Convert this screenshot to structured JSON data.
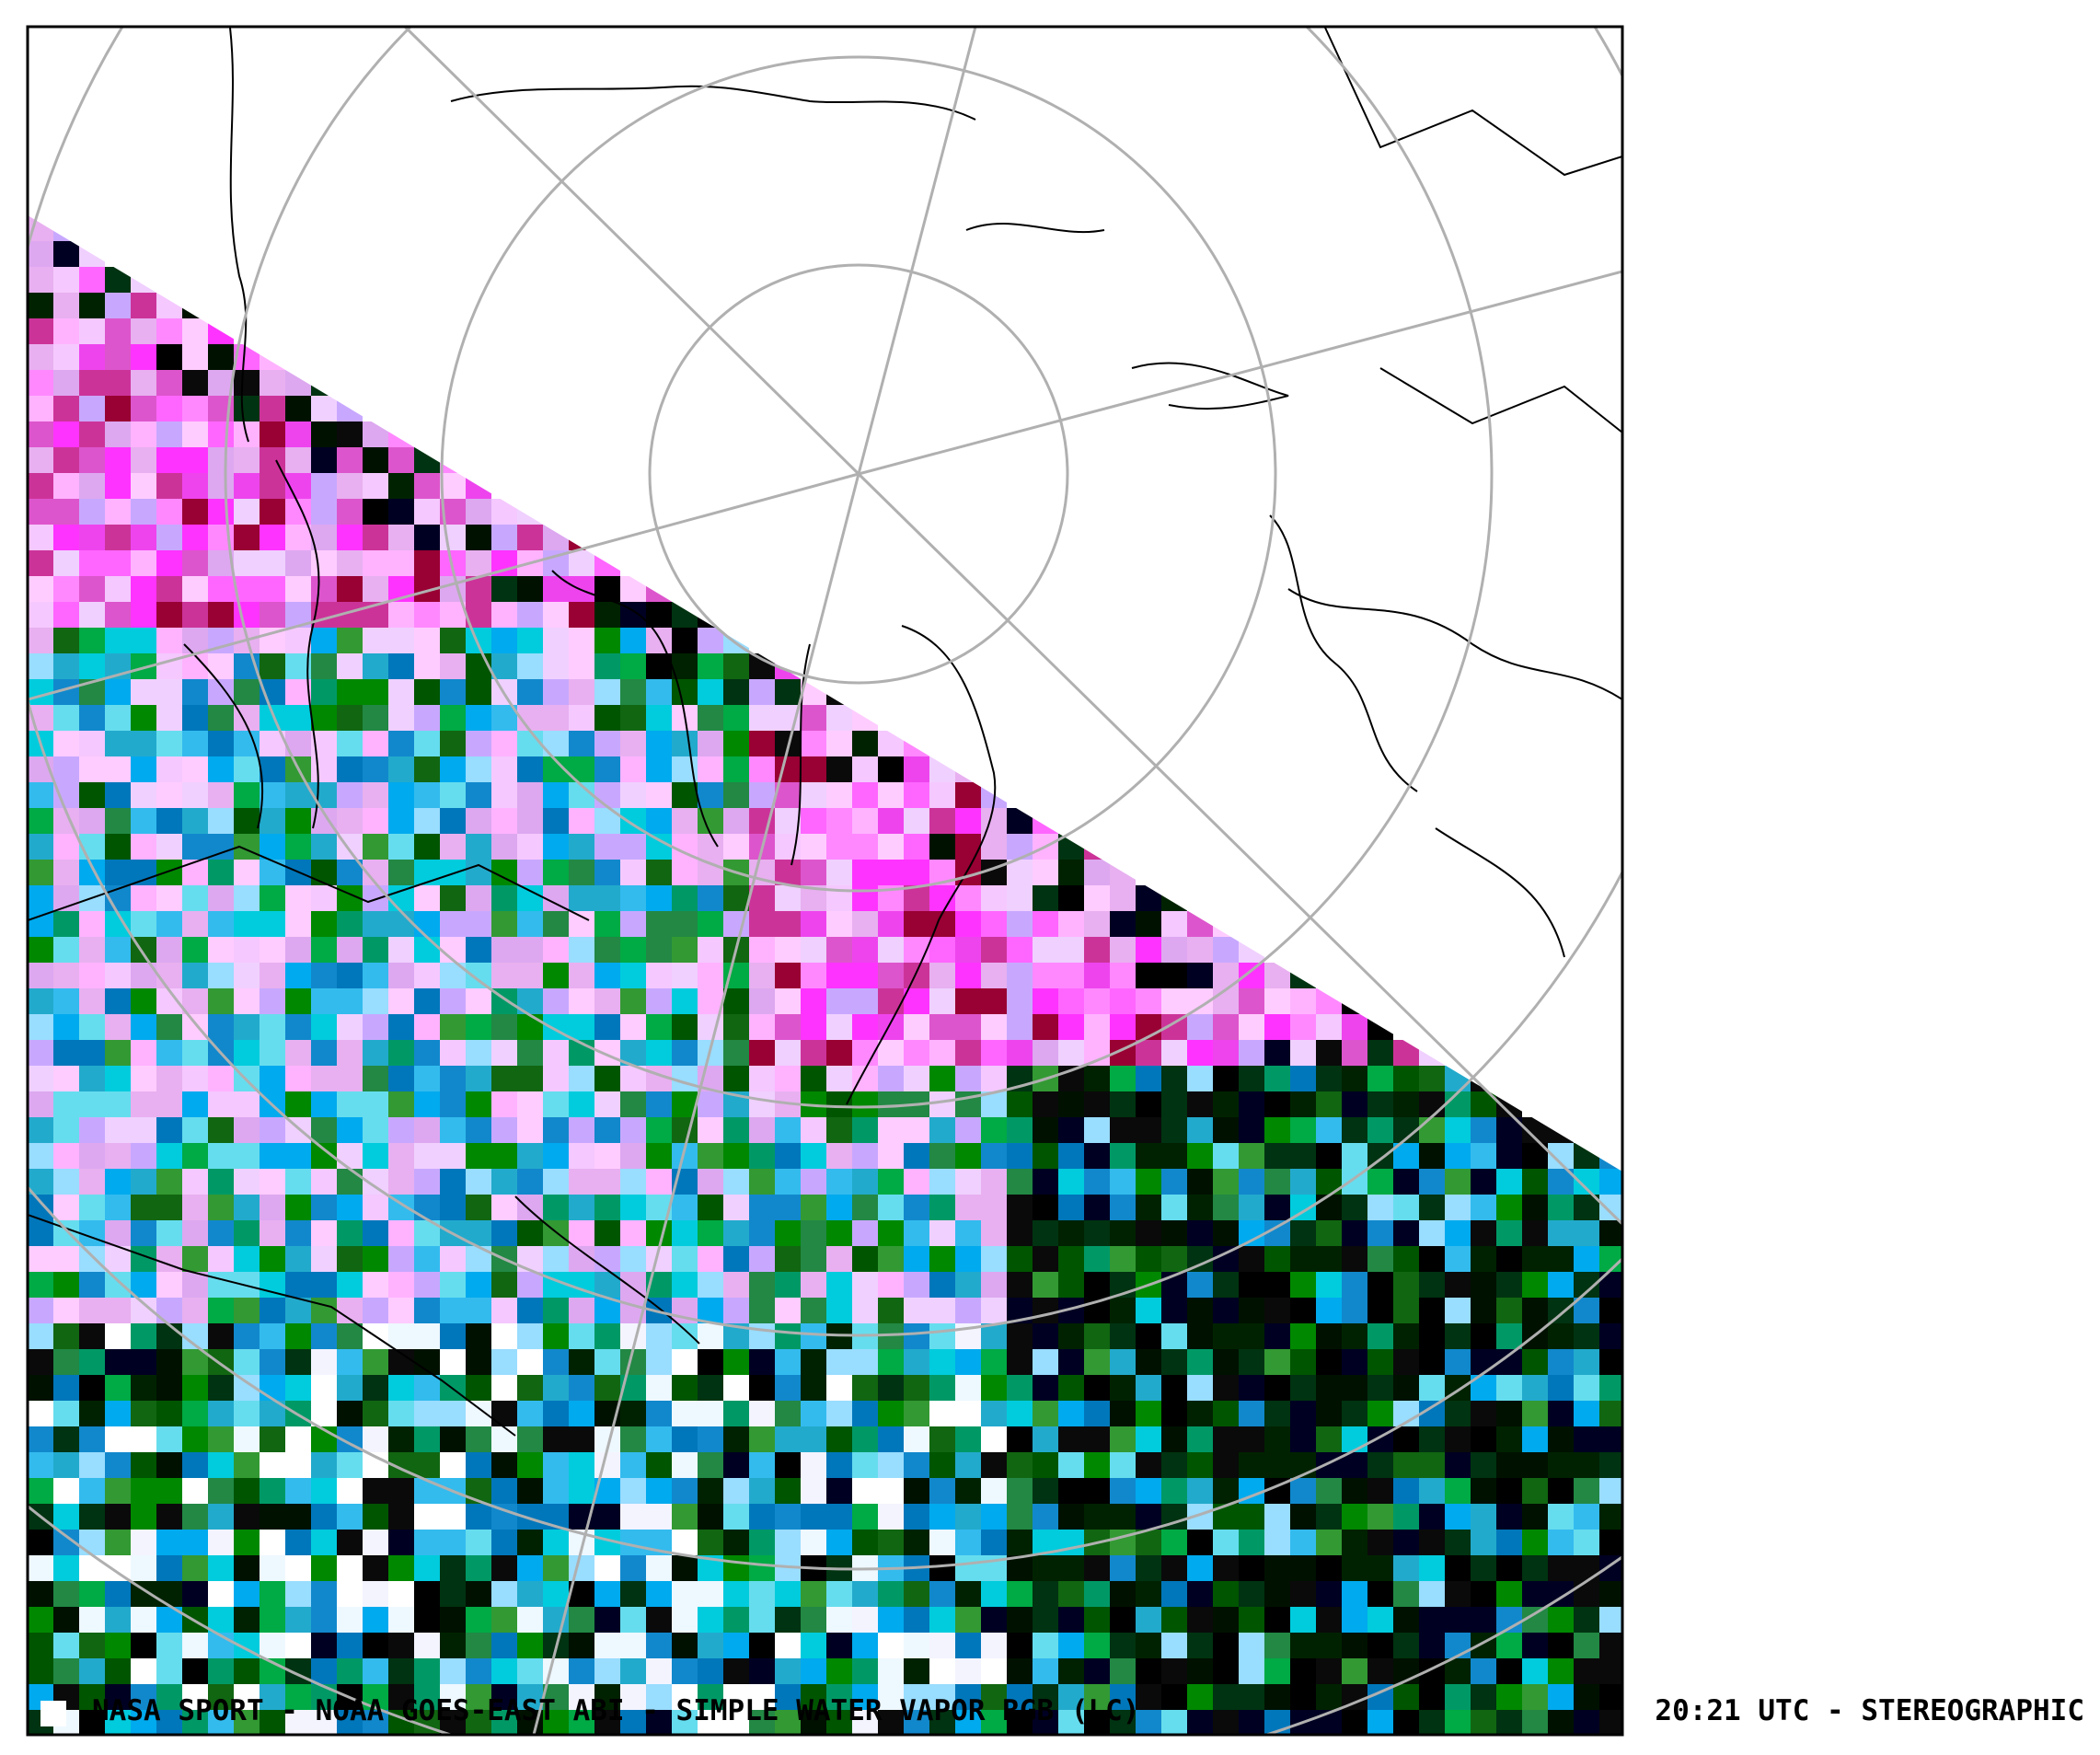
{
  "caption_left": "NASA SPORT  -  NOAA GOES-EAST ABI  -  SIMPLE WATER VAPOR RGB (LC)",
  "caption_right": "20:21 UTC - STEREOGRAPHIC"
}
